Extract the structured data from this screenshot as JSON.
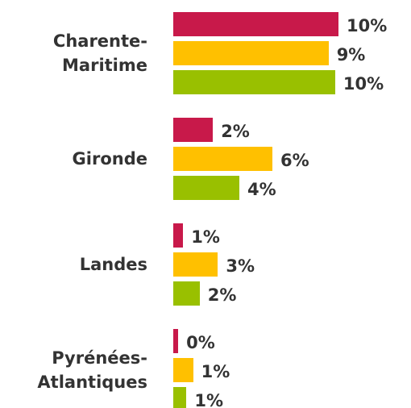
{
  "chart_data": {
    "type": "bar",
    "orientation": "horizontal",
    "categories": [
      "Charente-Maritime",
      "Gironde",
      "Landes",
      "Pyrénées-Atlantiques"
    ],
    "series": [
      {
        "color": "#c8194a",
        "values": [
          10.0,
          2.4,
          0.6,
          0.3
        ],
        "value_labels": [
          "10%",
          "2%",
          "1%",
          "0%"
        ]
      },
      {
        "color": "#ffc000",
        "values": [
          9.4,
          6.0,
          2.7,
          1.2
        ],
        "value_labels": [
          "9%",
          "6%",
          "3%",
          "1%"
        ]
      },
      {
        "color": "#99c000",
        "values": [
          9.8,
          4.0,
          1.6,
          0.8
        ],
        "value_labels": [
          "10%",
          "4%",
          "2%",
          "1%"
        ]
      }
    ]
  }
}
